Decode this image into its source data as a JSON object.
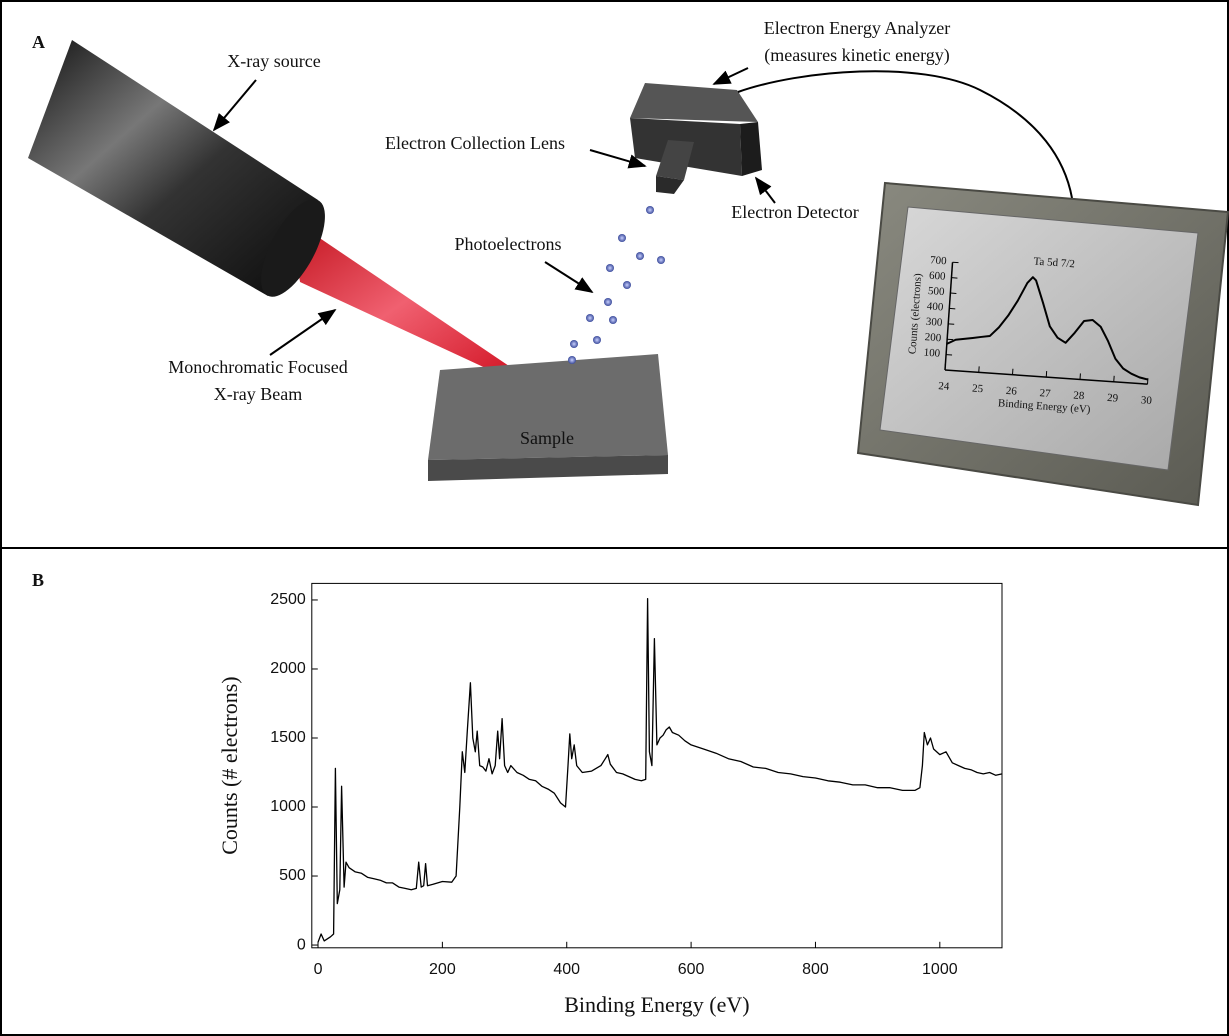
{
  "panels": [
    {
      "label": "A"
    },
    {
      "label": "B"
    }
  ],
  "annotations": {
    "xray_source": [
      "X-ray source"
    ],
    "analyzer": [
      "Electron Energy Analyzer",
      "(measures kinetic energy)"
    ],
    "lens": [
      "Electron Collection Lens"
    ],
    "photoelectrons": [
      "Photoelectrons"
    ],
    "detector": [
      "Electron Detector"
    ],
    "beam": [
      "Monochromatic Focused",
      "X-ray Beam"
    ],
    "sample": [
      "Sample"
    ]
  },
  "chart_data": [
    {
      "type": "line",
      "title": "Ta 5d 7/2",
      "x_label": "Binding Energy (eV)",
      "y_label": "Counts (electrons)",
      "color": "#000000",
      "x": [
        24,
        24.25,
        24.5,
        24.75,
        25,
        25.25,
        25.5,
        25.75,
        26,
        26.25,
        26.4,
        26.5,
        26.75,
        27,
        27.25,
        27.5,
        27.75,
        28,
        28.25,
        28.5,
        28.75,
        29,
        29.25,
        29.5,
        29.75,
        30
      ],
      "values": [
        170,
        200,
        210,
        220,
        230,
        240,
        300,
        380,
        480,
        600,
        640,
        620,
        480,
        330,
        260,
        230,
        300,
        380,
        390,
        350,
        260,
        150,
        90,
        60,
        40,
        30
      ],
      "xlim": [
        24,
        30
      ],
      "ylim": [
        0,
        700
      ],
      "xticks": [
        24,
        25,
        26,
        27,
        28,
        29,
        30
      ],
      "yticks": [
        100,
        200,
        300,
        400,
        500,
        600,
        700
      ]
    },
    {
      "type": "line",
      "x_label": "Binding Energy (eV)",
      "y_label": "Counts (# electrons)",
      "color": "#000000",
      "x": [
        0,
        5,
        10,
        20,
        25,
        28,
        31,
        35,
        38,
        42,
        45,
        50,
        60,
        70,
        80,
        90,
        100,
        110,
        120,
        130,
        140,
        150,
        158,
        162,
        166,
        170,
        173,
        176,
        185,
        200,
        215,
        222,
        228,
        232,
        236,
        240,
        245,
        249,
        253,
        256,
        260,
        265,
        270,
        275,
        280,
        285,
        289,
        292,
        296,
        300,
        305,
        310,
        320,
        330,
        340,
        350,
        360,
        370,
        380,
        390,
        398,
        402,
        405,
        408,
        412,
        416,
        425,
        440,
        455,
        462,
        466,
        470,
        480,
        490,
        500,
        510,
        520,
        527,
        530,
        533,
        537,
        541,
        545,
        550,
        555,
        560,
        565,
        570,
        580,
        590,
        600,
        620,
        640,
        660,
        680,
        700,
        720,
        740,
        760,
        780,
        800,
        820,
        840,
        860,
        880,
        900,
        920,
        940,
        960,
        968,
        972,
        975,
        980,
        985,
        990,
        1000,
        1010,
        1020,
        1030,
        1040,
        1050,
        1060,
        1070,
        1080,
        1090,
        1100
      ],
      "values": [
        20,
        80,
        30,
        60,
        80,
        1280,
        300,
        400,
        1150,
        420,
        600,
        560,
        530,
        520,
        490,
        480,
        470,
        450,
        450,
        420,
        410,
        400,
        410,
        600,
        420,
        430,
        590,
        430,
        440,
        460,
        455,
        500,
        1000,
        1400,
        1250,
        1550,
        1900,
        1500,
        1400,
        1550,
        1300,
        1290,
        1260,
        1350,
        1240,
        1300,
        1550,
        1350,
        1640,
        1300,
        1250,
        1300,
        1250,
        1230,
        1200,
        1190,
        1150,
        1130,
        1100,
        1030,
        1000,
        1300,
        1530,
        1350,
        1450,
        1300,
        1250,
        1260,
        1300,
        1350,
        1380,
        1310,
        1250,
        1240,
        1220,
        1200,
        1190,
        1200,
        2510,
        1400,
        1300,
        2220,
        1450,
        1500,
        1520,
        1560,
        1580,
        1540,
        1520,
        1480,
        1450,
        1420,
        1390,
        1350,
        1330,
        1290,
        1280,
        1250,
        1240,
        1220,
        1210,
        1190,
        1180,
        1160,
        1160,
        1140,
        1140,
        1120,
        1120,
        1140,
        1300,
        1540,
        1450,
        1500,
        1420,
        1380,
        1400,
        1320,
        1300,
        1280,
        1270,
        1250,
        1240,
        1250,
        1230,
        1240
      ],
      "xlim": [
        -10,
        1100
      ],
      "ylim": [
        -20,
        2620
      ],
      "xticks": [
        0,
        200,
        400,
        600,
        800,
        1000
      ],
      "yticks": [
        0,
        500,
        1000,
        1500,
        2000,
        2500
      ]
    }
  ]
}
